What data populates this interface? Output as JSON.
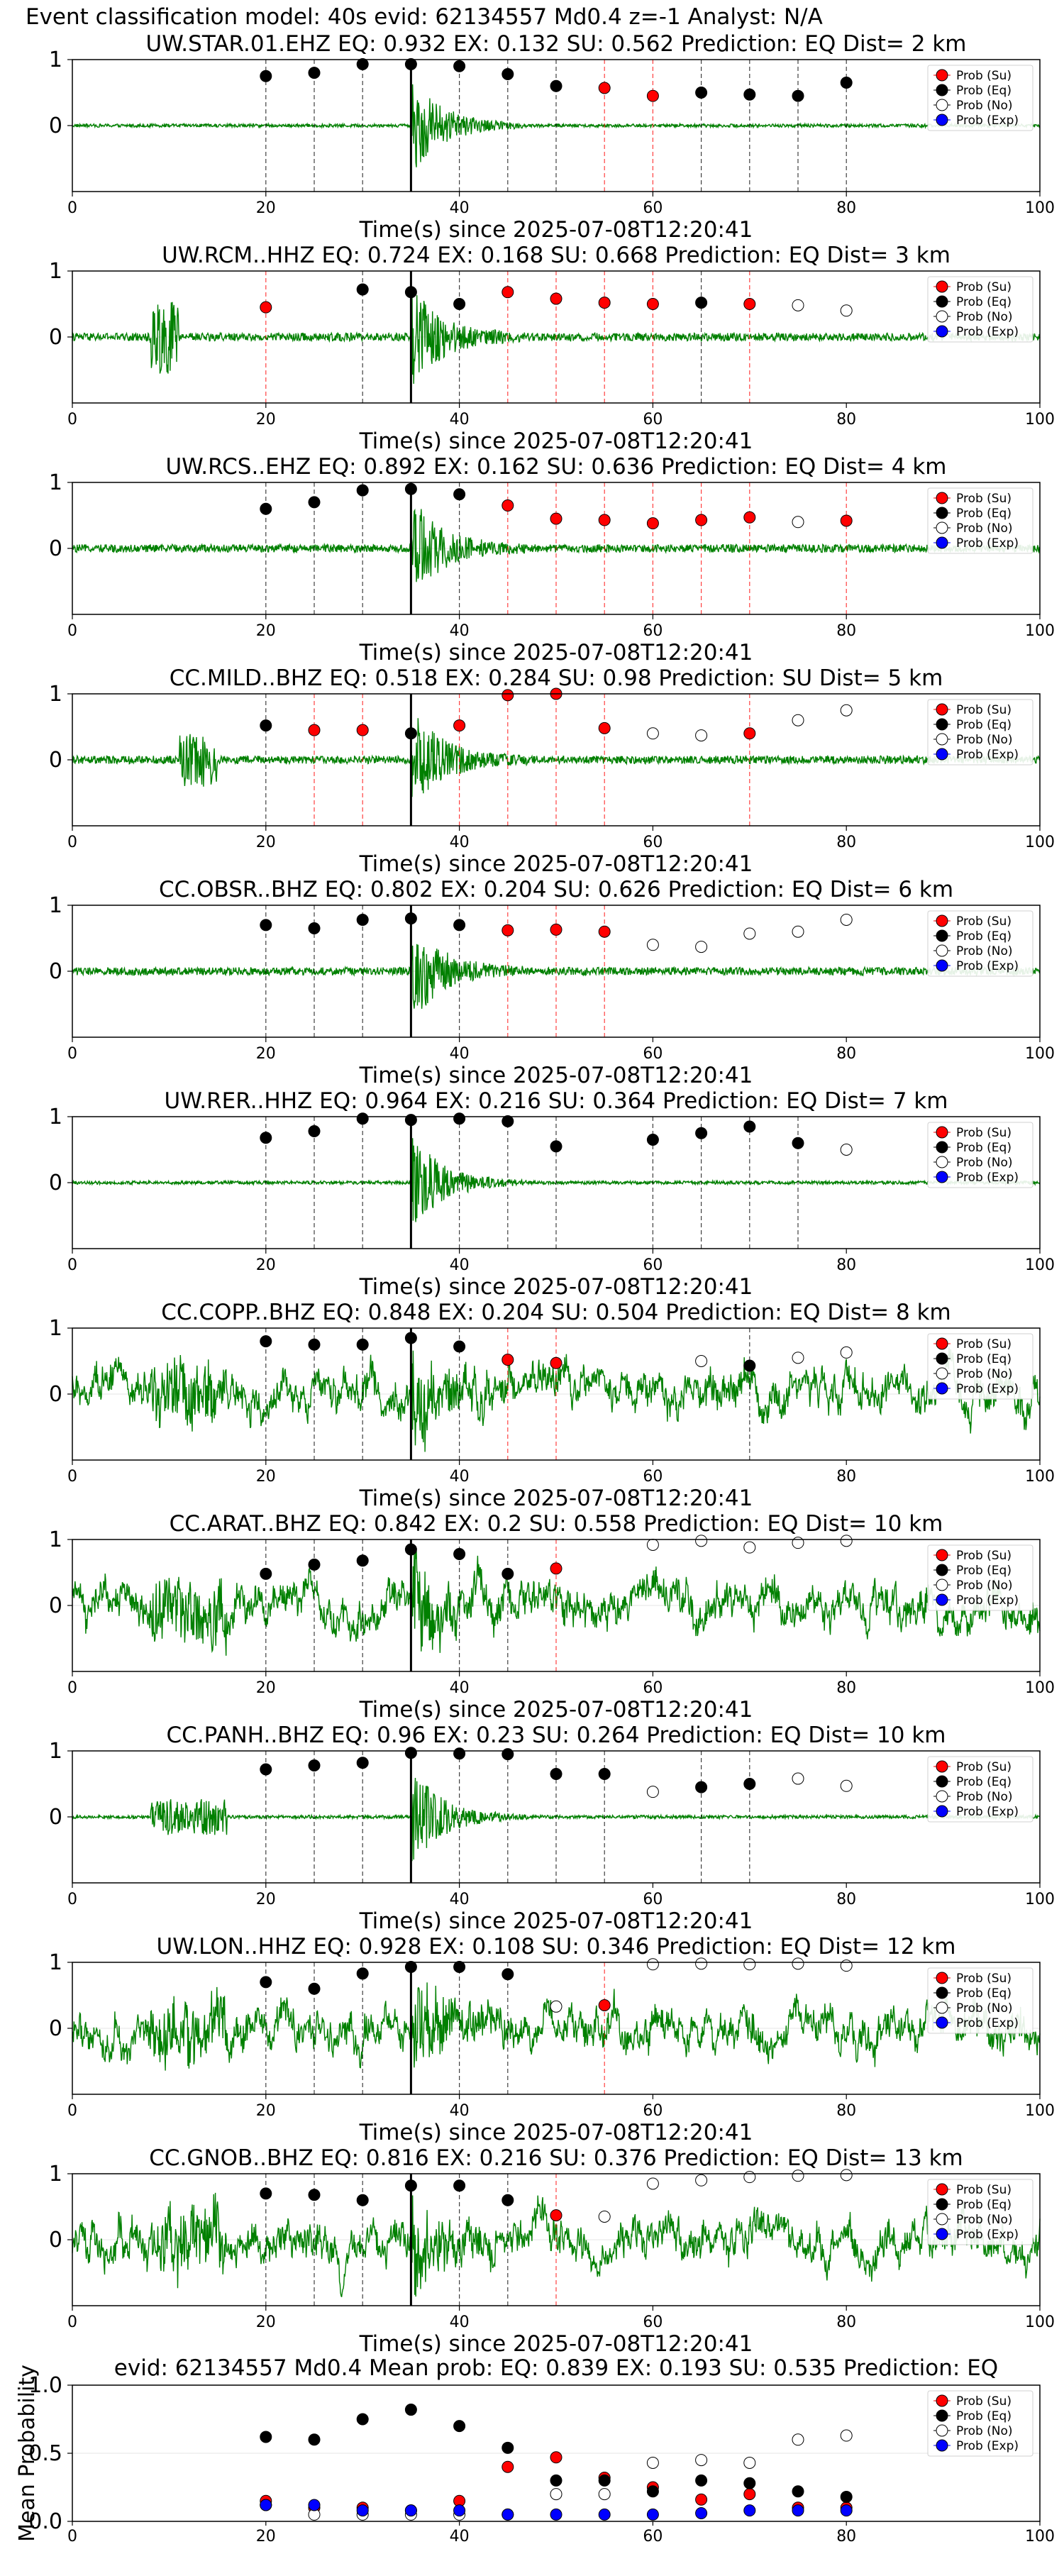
{
  "figure_title": "Event classification model: 40s evid: 62134557 Md0.4 z=-1 Analyst: N/A",
  "legend_labels": [
    "Prob (Su)",
    "Prob (Eq)",
    "Prob (No)",
    "Prob (Exp)"
  ],
  "colors": {
    "su": "#ff0000",
    "eq": "#000000",
    "no": "#ffffff",
    "exp": "#0000ff",
    "waveform": "#008000",
    "pick_line": "#000000"
  },
  "chart_data": [
    {
      "type": "line",
      "station": "UW.STAR.01.EHZ",
      "title": "UW.STAR.01.EHZ   EQ: 0.932  EX: 0.132  SU: 0.562   Prediction: EQ    Dist= 2 km",
      "xlabel": "Time(s) since 2025-07-08T12:20:41",
      "xlim": [
        0,
        100
      ],
      "ylim": [
        -1,
        1
      ],
      "xticks": [
        0,
        20,
        40,
        60,
        80,
        100
      ],
      "yticks": [
        0,
        1
      ],
      "pick_time": 35,
      "amp_hint": "quiet",
      "points": [
        [
          20,
          0.75,
          "eq"
        ],
        [
          25,
          0.8,
          "eq"
        ],
        [
          30,
          0.93,
          "eq"
        ],
        [
          35,
          0.93,
          "eq"
        ],
        [
          40,
          0.9,
          "eq"
        ],
        [
          45,
          0.78,
          "eq"
        ],
        [
          50,
          0.6,
          "eq"
        ],
        [
          55,
          0.57,
          "su"
        ],
        [
          60,
          0.45,
          "su"
        ],
        [
          65,
          0.5,
          "eq"
        ],
        [
          70,
          0.47,
          "eq"
        ],
        [
          75,
          0.45,
          "eq"
        ],
        [
          80,
          0.65,
          "eq"
        ]
      ]
    },
    {
      "type": "line",
      "station": "UW.RCM..HHZ",
      "title": "UW.RCM..HHZ   EQ: 0.724  EX: 0.168  SU: 0.668   Prediction: EQ    Dist= 3 km",
      "xlabel": "Time(s) since 2025-07-08T12:20:41",
      "xlim": [
        0,
        100
      ],
      "ylim": [
        -1,
        1
      ],
      "xticks": [
        0,
        20,
        40,
        60,
        80,
        100
      ],
      "yticks": [
        0,
        1
      ],
      "pick_time": 35,
      "amp_hint": "medium",
      "points": [
        [
          20,
          0.45,
          "su"
        ],
        [
          30,
          0.72,
          "eq"
        ],
        [
          35,
          0.68,
          "eq"
        ],
        [
          40,
          0.5,
          "eq"
        ],
        [
          45,
          0.68,
          "su"
        ],
        [
          50,
          0.58,
          "su"
        ],
        [
          55,
          0.52,
          "su"
        ],
        [
          60,
          0.5,
          "su"
        ],
        [
          65,
          0.52,
          "eq"
        ],
        [
          70,
          0.5,
          "su"
        ],
        [
          75,
          0.48,
          "no"
        ],
        [
          80,
          0.4,
          "no"
        ]
      ]
    },
    {
      "type": "line",
      "station": "UW.RCS..EHZ",
      "title": "UW.RCS..EHZ   EQ: 0.892  EX: 0.162  SU: 0.636   Prediction: EQ    Dist= 4 km",
      "xlabel": "Time(s) since 2025-07-08T12:20:41",
      "xlim": [
        0,
        100
      ],
      "ylim": [
        -1,
        1
      ],
      "xticks": [
        0,
        20,
        40,
        60,
        80,
        100
      ],
      "yticks": [
        0,
        1
      ],
      "pick_time": 35,
      "amp_hint": "medium",
      "points": [
        [
          20,
          0.6,
          "eq"
        ],
        [
          25,
          0.7,
          "eq"
        ],
        [
          30,
          0.88,
          "eq"
        ],
        [
          35,
          0.9,
          "eq"
        ],
        [
          40,
          0.82,
          "eq"
        ],
        [
          45,
          0.65,
          "su"
        ],
        [
          50,
          0.45,
          "su"
        ],
        [
          55,
          0.43,
          "su"
        ],
        [
          60,
          0.38,
          "su"
        ],
        [
          65,
          0.43,
          "su"
        ],
        [
          70,
          0.47,
          "su"
        ],
        [
          75,
          0.4,
          "no"
        ],
        [
          80,
          0.42,
          "su"
        ]
      ]
    },
    {
      "type": "line",
      "station": "CC.MILD..BHZ",
      "title": "CC.MILD..BHZ   EQ: 0.518  EX: 0.284  SU: 0.98   Prediction: SU    Dist= 5 km",
      "xlabel": "Time(s) since 2025-07-08T12:20:41",
      "xlim": [
        0,
        100
      ],
      "ylim": [
        -1,
        1
      ],
      "xticks": [
        0,
        20,
        40,
        60,
        80,
        100
      ],
      "yticks": [
        0,
        1
      ],
      "pick_time": 35,
      "amp_hint": "medium",
      "points": [
        [
          20,
          0.52,
          "eq"
        ],
        [
          25,
          0.45,
          "su"
        ],
        [
          30,
          0.45,
          "su"
        ],
        [
          35,
          0.4,
          "eq"
        ],
        [
          40,
          0.52,
          "su"
        ],
        [
          45,
          0.98,
          "su"
        ],
        [
          50,
          1.0,
          "su"
        ],
        [
          55,
          0.48,
          "su"
        ],
        [
          60,
          0.4,
          "no"
        ],
        [
          65,
          0.37,
          "no"
        ],
        [
          70,
          0.4,
          "su"
        ],
        [
          75,
          0.6,
          "no"
        ],
        [
          80,
          0.75,
          "no"
        ]
      ]
    },
    {
      "type": "line",
      "station": "CC.OBSR..BHZ",
      "title": "CC.OBSR..BHZ   EQ: 0.802  EX: 0.204  SU: 0.626   Prediction: EQ    Dist= 6 km",
      "xlabel": "Time(s) since 2025-07-08T12:20:41",
      "xlim": [
        0,
        100
      ],
      "ylim": [
        -1,
        1
      ],
      "xticks": [
        0,
        20,
        40,
        60,
        80,
        100
      ],
      "yticks": [
        0,
        1
      ],
      "pick_time": 35,
      "amp_hint": "medium",
      "points": [
        [
          20,
          0.7,
          "eq"
        ],
        [
          25,
          0.65,
          "eq"
        ],
        [
          30,
          0.78,
          "eq"
        ],
        [
          35,
          0.8,
          "eq"
        ],
        [
          40,
          0.7,
          "eq"
        ],
        [
          45,
          0.62,
          "su"
        ],
        [
          50,
          0.63,
          "su"
        ],
        [
          55,
          0.6,
          "su"
        ],
        [
          60,
          0.4,
          "no"
        ],
        [
          65,
          0.37,
          "no"
        ],
        [
          70,
          0.57,
          "no"
        ],
        [
          75,
          0.6,
          "no"
        ],
        [
          80,
          0.78,
          "no"
        ]
      ]
    },
    {
      "type": "line",
      "station": "UW.RER..HHZ",
      "title": "UW.RER..HHZ   EQ: 0.964  EX: 0.216  SU: 0.364   Prediction: EQ    Dist= 7 km",
      "xlabel": "Time(s) since 2025-07-08T12:20:41",
      "xlim": [
        0,
        100
      ],
      "ylim": [
        -1,
        1
      ],
      "xticks": [
        0,
        20,
        40,
        60,
        80,
        100
      ],
      "yticks": [
        0,
        1
      ],
      "pick_time": 35,
      "amp_hint": "quiet",
      "points": [
        [
          20,
          0.68,
          "eq"
        ],
        [
          25,
          0.78,
          "eq"
        ],
        [
          30,
          0.97,
          "eq"
        ],
        [
          35,
          0.95,
          "eq"
        ],
        [
          40,
          0.97,
          "eq"
        ],
        [
          45,
          0.93,
          "eq"
        ],
        [
          50,
          0.55,
          "eq"
        ],
        [
          60,
          0.65,
          "eq"
        ],
        [
          65,
          0.75,
          "eq"
        ],
        [
          70,
          0.85,
          "eq"
        ],
        [
          75,
          0.6,
          "eq"
        ],
        [
          80,
          0.5,
          "no"
        ]
      ]
    },
    {
      "type": "line",
      "station": "CC.COPP..BHZ",
      "title": "CC.COPP..BHZ   EQ: 0.848  EX: 0.204  SU: 0.504   Prediction: EQ    Dist= 8 km",
      "xlabel": "Time(s) since 2025-07-08T12:20:41",
      "xlim": [
        0,
        100
      ],
      "ylim": [
        -1,
        1
      ],
      "xticks": [
        0,
        20,
        40,
        60,
        80,
        100
      ],
      "yticks": [
        0,
        1
      ],
      "pick_time": 35,
      "amp_hint": "noisy",
      "points": [
        [
          20,
          0.8,
          "eq"
        ],
        [
          25,
          0.75,
          "eq"
        ],
        [
          30,
          0.75,
          "eq"
        ],
        [
          35,
          0.85,
          "eq"
        ],
        [
          40,
          0.72,
          "eq"
        ],
        [
          45,
          0.52,
          "su"
        ],
        [
          50,
          0.47,
          "su"
        ],
        [
          65,
          0.5,
          "no"
        ],
        [
          70,
          0.43,
          "eq"
        ],
        [
          75,
          0.55,
          "no"
        ],
        [
          80,
          0.63,
          "no"
        ]
      ]
    },
    {
      "type": "line",
      "station": "CC.ARAT..BHZ",
      "title": "CC.ARAT..BHZ   EQ: 0.842  EX: 0.2  SU: 0.558   Prediction: EQ    Dist= 10 km",
      "xlabel": "Time(s) since 2025-07-08T12:20:41",
      "xlim": [
        0,
        100
      ],
      "ylim": [
        -1,
        1
      ],
      "xticks": [
        0,
        20,
        40,
        60,
        80,
        100
      ],
      "yticks": [
        0,
        1
      ],
      "pick_time": 35,
      "amp_hint": "noisy",
      "points": [
        [
          20,
          0.48,
          "eq"
        ],
        [
          25,
          0.62,
          "eq"
        ],
        [
          30,
          0.68,
          "eq"
        ],
        [
          35,
          0.85,
          "eq"
        ],
        [
          40,
          0.78,
          "eq"
        ],
        [
          45,
          0.48,
          "eq"
        ],
        [
          50,
          0.56,
          "su"
        ],
        [
          60,
          0.92,
          "no"
        ],
        [
          65,
          0.98,
          "no"
        ],
        [
          70,
          0.88,
          "no"
        ],
        [
          75,
          0.95,
          "no"
        ],
        [
          80,
          0.98,
          "no"
        ]
      ]
    },
    {
      "type": "line",
      "station": "CC.PANH..BHZ",
      "title": "CC.PANH..BHZ   EQ: 0.96  EX: 0.23  SU: 0.264   Prediction: EQ    Dist= 10 km",
      "xlabel": "Time(s) since 2025-07-08T12:20:41",
      "xlim": [
        0,
        100
      ],
      "ylim": [
        -1,
        1
      ],
      "xticks": [
        0,
        20,
        40,
        60,
        80,
        100
      ],
      "yticks": [
        0,
        1
      ],
      "pick_time": 35,
      "amp_hint": "quiet",
      "points": [
        [
          20,
          0.72,
          "eq"
        ],
        [
          25,
          0.78,
          "eq"
        ],
        [
          30,
          0.82,
          "eq"
        ],
        [
          35,
          0.97,
          "eq"
        ],
        [
          40,
          0.96,
          "eq"
        ],
        [
          45,
          0.95,
          "eq"
        ],
        [
          50,
          0.65,
          "eq"
        ],
        [
          55,
          0.65,
          "eq"
        ],
        [
          60,
          0.38,
          "no"
        ],
        [
          65,
          0.45,
          "eq"
        ],
        [
          70,
          0.5,
          "eq"
        ],
        [
          75,
          0.58,
          "no"
        ],
        [
          80,
          0.47,
          "no"
        ]
      ]
    },
    {
      "type": "line",
      "station": "UW.LON..HHZ",
      "title": "UW.LON..HHZ   EQ: 0.928  EX: 0.108  SU: 0.346   Prediction: EQ    Dist= 12 km",
      "xlabel": "Time(s) since 2025-07-08T12:20:41",
      "xlim": [
        0,
        100
      ],
      "ylim": [
        -1,
        1
      ],
      "xticks": [
        0,
        20,
        40,
        60,
        80,
        100
      ],
      "yticks": [
        0,
        1
      ],
      "pick_time": 35,
      "amp_hint": "noisy",
      "points": [
        [
          20,
          0.7,
          "eq"
        ],
        [
          25,
          0.6,
          "eq"
        ],
        [
          30,
          0.83,
          "eq"
        ],
        [
          35,
          0.93,
          "eq"
        ],
        [
          40,
          0.93,
          "eq"
        ],
        [
          45,
          0.82,
          "eq"
        ],
        [
          50,
          0.33,
          "no"
        ],
        [
          55,
          0.35,
          "su"
        ],
        [
          60,
          0.97,
          "no"
        ],
        [
          65,
          0.98,
          "no"
        ],
        [
          70,
          0.97,
          "no"
        ],
        [
          75,
          0.98,
          "no"
        ],
        [
          80,
          0.95,
          "no"
        ]
      ]
    },
    {
      "type": "line",
      "station": "CC.GNOB..BHZ",
      "title": "CC.GNOB..BHZ   EQ: 0.816  EX: 0.216  SU: 0.376   Prediction: EQ    Dist= 13 km",
      "xlabel": "Time(s) since 2025-07-08T12:20:41",
      "xlim": [
        0,
        100
      ],
      "ylim": [
        -1,
        1
      ],
      "xticks": [
        0,
        20,
        40,
        60,
        80,
        100
      ],
      "yticks": [
        0,
        1
      ],
      "pick_time": 35,
      "amp_hint": "noisy",
      "points": [
        [
          20,
          0.7,
          "eq"
        ],
        [
          25,
          0.68,
          "eq"
        ],
        [
          30,
          0.6,
          "eq"
        ],
        [
          35,
          0.82,
          "eq"
        ],
        [
          40,
          0.82,
          "eq"
        ],
        [
          45,
          0.6,
          "eq"
        ],
        [
          50,
          0.37,
          "su"
        ],
        [
          55,
          0.35,
          "no"
        ],
        [
          60,
          0.85,
          "no"
        ],
        [
          65,
          0.9,
          "no"
        ],
        [
          70,
          0.95,
          "no"
        ],
        [
          75,
          0.97,
          "no"
        ],
        [
          80,
          0.98,
          "no"
        ]
      ]
    },
    {
      "type": "scatter",
      "title": "evid: 62134557  Md0.4   Mean prob:   EQ: 0.839  EX: 0.193  SU: 0.535   Prediction: EQ",
      "ylabel": "Mean Probability",
      "xlim": [
        0,
        100
      ],
      "ylim": [
        0,
        1
      ],
      "xticks": [
        0,
        20,
        40,
        60,
        80,
        100
      ],
      "yticks": [
        0.0,
        0.5,
        1.0
      ],
      "series": [
        {
          "name": "Prob (Su)",
          "key": "su",
          "x": [
            20,
            25,
            30,
            35,
            40,
            45,
            50,
            55,
            60,
            65,
            70,
            75,
            80
          ],
          "y": [
            0.15,
            0.1,
            0.1,
            0.08,
            0.15,
            0.4,
            0.47,
            0.32,
            0.25,
            0.16,
            0.2,
            0.1,
            0.1
          ]
        },
        {
          "name": "Prob (Eq)",
          "key": "eq",
          "x": [
            20,
            25,
            30,
            35,
            40,
            45,
            50,
            55,
            60,
            65,
            70,
            75,
            80
          ],
          "y": [
            0.62,
            0.6,
            0.75,
            0.82,
            0.7,
            0.54,
            0.3,
            0.3,
            0.22,
            0.3,
            0.28,
            0.22,
            0.18
          ]
        },
        {
          "name": "Prob (No)",
          "key": "no",
          "x": [
            20,
            25,
            30,
            35,
            40,
            45,
            50,
            55,
            60,
            65,
            70,
            75,
            80
          ],
          "y": [
            0.12,
            0.05,
            0.05,
            0.05,
            0.05,
            0.05,
            0.2,
            0.2,
            0.43,
            0.45,
            0.43,
            0.6,
            0.63
          ]
        },
        {
          "name": "Prob (Exp)",
          "key": "exp",
          "x": [
            20,
            25,
            30,
            35,
            40,
            45,
            50,
            55,
            60,
            65,
            70,
            75,
            80
          ],
          "y": [
            0.12,
            0.12,
            0.08,
            0.08,
            0.08,
            0.05,
            0.05,
            0.05,
            0.05,
            0.06,
            0.08,
            0.08,
            0.08
          ]
        }
      ]
    }
  ]
}
